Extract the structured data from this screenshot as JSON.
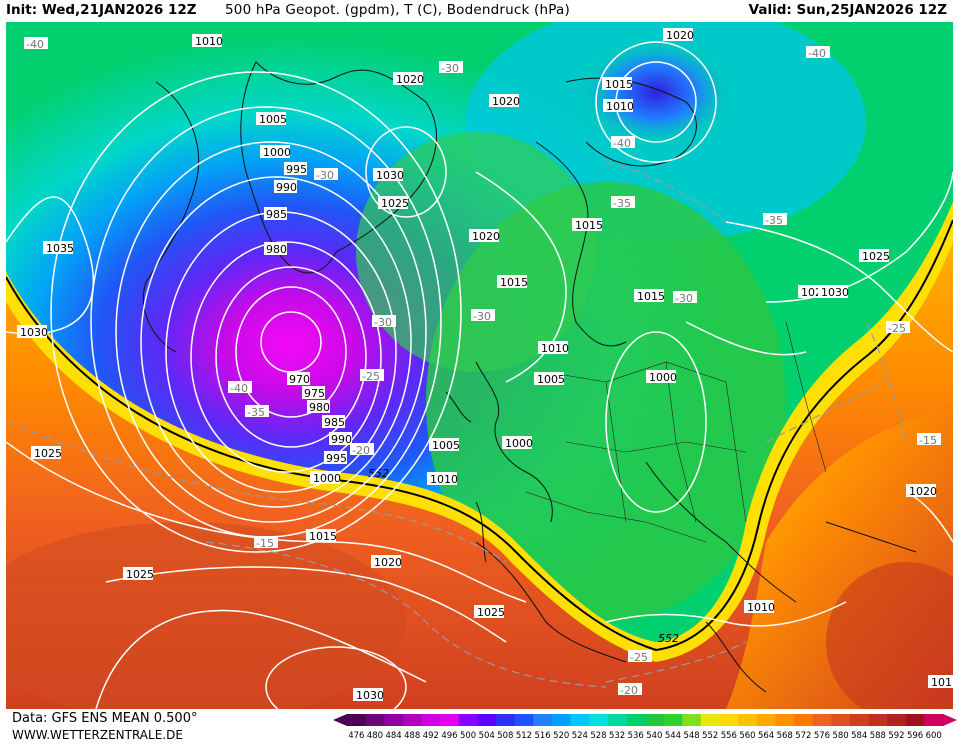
{
  "header": {
    "init": "Init: Wed,21JAN2026 12Z",
    "product": "500 hPa Geopot. (gpdm), T (C), Bodendruck (hPa)",
    "valid": "Valid: Sun,25JAN2026 12Z"
  },
  "footer": {
    "data": "Data: GFS ENS MEAN 0.500°",
    "site": "WWW.WETTERZENTRALE.DE"
  },
  "legend": {
    "values": [
      "476",
      "480",
      "484",
      "488",
      "492",
      "496",
      "500",
      "504",
      "508",
      "512",
      "516",
      "520",
      "524",
      "528",
      "532",
      "536",
      "540",
      "544",
      "548",
      "552",
      "556",
      "560",
      "564",
      "568",
      "572",
      "576",
      "580",
      "584",
      "588",
      "592",
      "596",
      "600"
    ],
    "colors": [
      "#4b0056",
      "#6c0078",
      "#9000a0",
      "#b000c0",
      "#d000e0",
      "#e400f0",
      "#8a00ff",
      "#5a00ff",
      "#3030f0",
      "#2050ff",
      "#2080ff",
      "#00a0ff",
      "#00c8ff",
      "#00e0e0",
      "#00d8a0",
      "#00d070",
      "#20c840",
      "#30d030",
      "#80e020",
      "#e8e800",
      "#ffd800",
      "#ffc000",
      "#ffa800",
      "#ff9000",
      "#ff7800",
      "#f06020",
      "#e05020",
      "#d04020",
      "#c03020",
      "#b02020",
      "#a01020",
      "#d00060"
    ]
  },
  "pressure_labels": [
    "1010",
    "1005",
    "1000",
    "995",
    "990",
    "985",
    "980",
    "970",
    "975",
    "980",
    "985",
    "990",
    "995",
    "1000",
    "1005",
    "1010",
    "1015",
    "1020",
    "1025",
    "1030",
    "1035",
    "1030",
    "1025",
    "1020",
    "1015",
    "1010",
    "1020",
    "1030",
    "1025",
    "1020",
    "1015",
    "1020",
    "1025",
    "1020",
    "1015",
    "1010",
    "1005",
    "1000",
    "1000",
    "1010",
    "1025",
    "1030",
    "1020",
    "1020",
    "1025",
    "1030",
    "1025",
    "1015",
    "1010",
    "101",
    "1025"
  ],
  "temp_labels": [
    "-40",
    "-30",
    "-30",
    "-40",
    "-35",
    "-40",
    "-35",
    "-30",
    "-30",
    "-30",
    "-25",
    "-30",
    "-40",
    "-35",
    "-20",
    "-25",
    "-15",
    "-15",
    "-25",
    "-20",
    "-30"
  ],
  "line_label_552": "552"
}
